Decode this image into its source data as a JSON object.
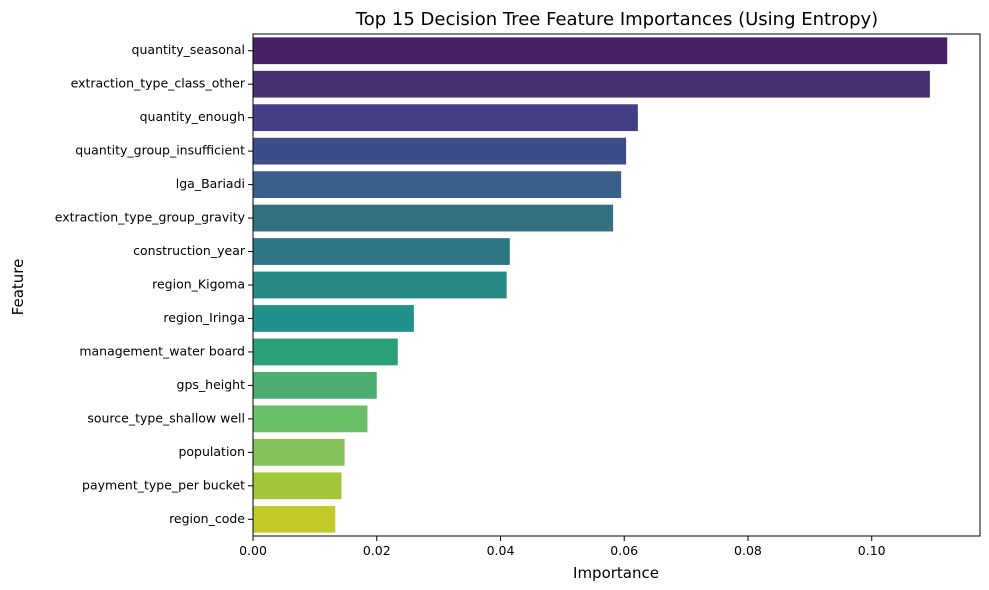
{
  "chart_data": {
    "type": "bar",
    "orientation": "horizontal",
    "title": "Top 15 Decision Tree Feature Importances (Using Entropy)",
    "xlabel": "Importance",
    "ylabel": "Feature",
    "xlim": [
      0,
      0.1175
    ],
    "xticks": [
      0.0,
      0.02,
      0.04,
      0.06,
      0.08,
      0.1
    ],
    "xtick_labels": [
      "0.00",
      "0.02",
      "0.04",
      "0.06",
      "0.08",
      "0.10"
    ],
    "grid": false,
    "legend": "none",
    "colormap": "viridis",
    "categories": [
      "quantity_seasonal",
      "extraction_type_class_other",
      "quantity_enough",
      "quantity_group_insufficient",
      "lga_Bariadi",
      "extraction_type_group_gravity",
      "construction_year",
      "region_Kigoma",
      "region_Iringa",
      "management_water board",
      "gps_height",
      "source_type_shallow well",
      "population",
      "payment_type_per bucket",
      "region_code"
    ],
    "values": [
      0.1122,
      0.1094,
      0.0622,
      0.0603,
      0.0595,
      0.0582,
      0.0415,
      0.041,
      0.026,
      0.0234,
      0.02,
      0.0185,
      0.0148,
      0.0143,
      0.0133
    ],
    "colors": [
      "#482065",
      "#47306f",
      "#433e85",
      "#3e4c8a",
      "#3a5f8b",
      "#337181",
      "#2d7784",
      "#278a84",
      "#21918c",
      "#2ba076",
      "#4bad70",
      "#6cbf69",
      "#86c25a",
      "#a4c63a",
      "#c2cb2a"
    ]
  }
}
